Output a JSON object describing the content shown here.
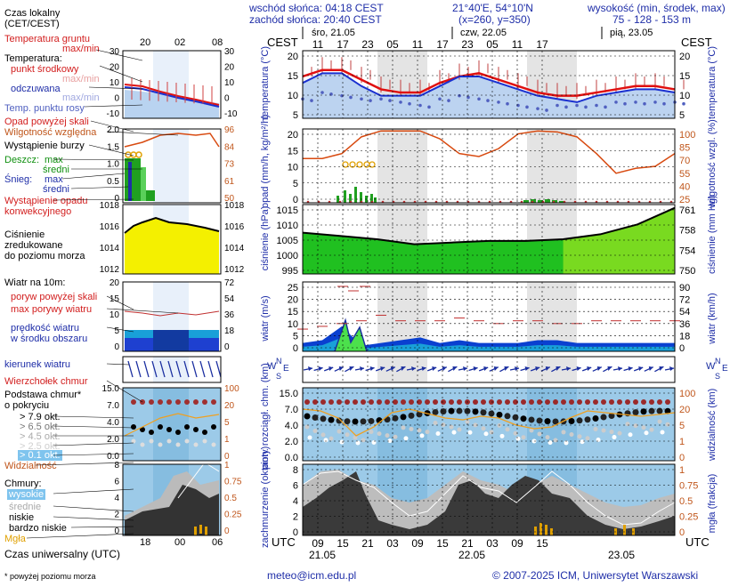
{
  "header": {
    "sunrise": "wschód słońca: 04:18 CEST",
    "sunset": "zachód słońca: 20:40 CEST",
    "coords": "21°40'E, 54°10'N",
    "grid": "(x=260, y=350)",
    "altitude_title": "wysokość (min, środek, max)",
    "altitude_values": "75 - 128 - 153 m"
  },
  "top_axis": {
    "tz_left": "CEST",
    "tz_right": "CEST",
    "days": [
      "śro, 21.05",
      "czw, 22.05",
      "pią, 23.05"
    ],
    "hours": [
      "11",
      "17",
      "23",
      "05",
      "11",
      "17",
      "23",
      "05",
      "11",
      "17"
    ]
  },
  "bottom_axis": {
    "tz_left": "UTC",
    "tz_right": "UTC",
    "hours": [
      "09",
      "15",
      "21",
      "03",
      "09",
      "15",
      "21",
      "03",
      "09",
      "15"
    ],
    "dates": [
      "21.05",
      "22.05",
      "23.05"
    ]
  },
  "legend": {
    "time_local": "Czas lokalny",
    "time_local2": "(CET/CEST)",
    "legend_hours_top": [
      "20",
      "02",
      "08"
    ],
    "legend_hours_bottom": [
      "18",
      "00",
      "06"
    ],
    "soil_temp": "Temperatura gruntu",
    "soil_maxmin": "max/min",
    "temp": "Temperatura:",
    "temp_mid": "punkt środkowy",
    "temp_maxmin": "max/min",
    "temp_felt": "odczuwana",
    "temp_felt_maxmin": "max/min",
    "dew": "Temp. punktu rosy",
    "precip_over": "Opad powyżej skali",
    "humidity": "Wilgotność względna",
    "storm": "Wystąpienie burzy",
    "rain": "Deszcz:",
    "rain_max": "max",
    "rain_mean": "średni",
    "snow": "Śnieg:",
    "snow_max": "max",
    "snow_mean": "średni",
    "conv": "Wystąpienie opadu",
    "conv2": "konwekcyjnego",
    "press1": "Ciśnienie",
    "press2": "zredukowane",
    "press3": "do poziomu morza",
    "wind_title": "Wiatr na 10m:",
    "gust_over": "poryw powyżej skali",
    "gust_max": "max porywy wiatru",
    "wind_speed1": "prędkość wiatru",
    "wind_speed2": "w środku obszaru",
    "wind_dir": "kierunek wiatru",
    "cb": "Wierzchołek chmur",
    "base1": "Podstawa chmur*",
    "base2": "o pokryciu",
    "okt": [
      "> 7.9 okt.",
      "> 6.5 okt.",
      "> 4.5 okt.",
      "> 2.5 okt.",
      "> 0.1 okt."
    ],
    "vis": "Widzialność",
    "clouds": "Chmury:",
    "c_high": "wysokie",
    "c_mid": "średnie",
    "c_low": "niskie",
    "c_vlow": "bardzo niskie",
    "fog": "Mgła",
    "utc": "Czas uniwersalny (UTC)",
    "footnote": "* powyżej poziomu morza"
  },
  "panel_labels": {
    "temp_l": "temperatura (°C)",
    "temp_r": "temperatura (°C)",
    "precip_l": "opad (mm/h, kg/m²/h)",
    "precip_r": "wilgotność wzgl. (%)",
    "press_l": "ciśnienie (hPa)",
    "press_r": "ciśnienie (mm Hg)",
    "wind_l": "wiatr (m/s)",
    "wind_r": "wiatr (km/h)",
    "cloud_l": "pion. rozciągł. chm. (km)",
    "cloud_r": "widzialność (km)",
    "cover_l": "zachmurzenie (oktanty)",
    "cover_r": "mgła (frakcja)"
  },
  "axes": {
    "temp_left": [
      "20",
      "15",
      "10",
      "5"
    ],
    "temp_right": [
      "20",
      "15",
      "10",
      "5"
    ],
    "precip_left": [
      "20",
      "15",
      "10",
      "5",
      "0"
    ],
    "precip_right": [
      "100",
      "85",
      "70",
      "55",
      "40",
      "25"
    ],
    "press_left": [
      "1015",
      "1010",
      "1005",
      "1000",
      "995"
    ],
    "press_right": [
      "761",
      "758",
      "754",
      "750"
    ],
    "wind_left": [
      "25",
      "20",
      "15",
      "10",
      "5",
      "0"
    ],
    "wind_right": [
      "90",
      "72",
      "54",
      "36",
      "18",
      "0"
    ],
    "cloud_left": [
      "15.0",
      "7.0",
      "4.0",
      "2.0",
      "0.0"
    ],
    "cloud_right": [
      "100",
      "20",
      "5",
      "1",
      "0"
    ],
    "cover_left": [
      "8",
      "6",
      "4",
      "2",
      "0"
    ],
    "cover_right": [
      "1",
      "0.75",
      "0.5",
      "0.25",
      "0"
    ],
    "leg_temp_l": [
      "30",
      "20",
      "10",
      "0",
      "-10"
    ],
    "leg_temp_r": [
      "30",
      "20",
      "10",
      "0",
      "-10"
    ],
    "leg_prec_l": [
      "2.0",
      "1.5",
      "1.0",
      "0.5",
      "0"
    ],
    "leg_prec_r": [
      "96",
      "84",
      "73",
      "61",
      "50"
    ],
    "leg_press_l": [
      "1018",
      "1016",
      "1014",
      "1012"
    ],
    "leg_press_r": [
      "1018",
      "1016",
      "1014",
      "1012"
    ],
    "leg_wind_l": [
      "20",
      "15",
      "10",
      "5",
      "0"
    ],
    "leg_wind_r": [
      "72",
      "54",
      "36",
      "18",
      "0"
    ],
    "leg_cloud_l": [
      "15.0",
      "7.0",
      "4.0",
      "2.0",
      "0.0"
    ],
    "leg_cloud_r": [
      "100",
      "20",
      "5",
      "1",
      "0"
    ],
    "leg_cover_l": [
      "8",
      "6",
      "4",
      "2",
      "0"
    ],
    "leg_cover_r": [
      "1",
      "0.75",
      "0.5",
      "0.25",
      "0"
    ]
  },
  "footer": {
    "email": "meteo@icm.edu.pl",
    "copyright": "© 2007-2025 ICM, Uniwersytet Warszawski"
  },
  "colors": {
    "temp": "#e01010",
    "felt": "#1a30d0",
    "dew": "#5060c0",
    "humidity": "#d84a10",
    "rain": "#20a020",
    "press": "#20c020",
    "press_top": "#c8ee20",
    "wind": "#0a40d0",
    "night": "#e4e4e4",
    "cloudbg": "#9ccae8"
  },
  "chart_data": [
    {
      "type": "line",
      "name": "temperature",
      "x_hours_cest": [
        11,
        14,
        17,
        20,
        23,
        2,
        5,
        8,
        11,
        14,
        17,
        20,
        23,
        2,
        5,
        8,
        11,
        14,
        17,
        20
      ],
      "series": [
        {
          "name": "temperatura",
          "values": [
            15,
            17,
            17,
            14,
            11,
            10,
            10,
            13,
            15,
            16,
            14,
            12,
            10,
            9,
            9,
            10,
            11,
            12,
            12,
            11
          ]
        },
        {
          "name": "odczuwana",
          "values": [
            13,
            16,
            16,
            12,
            9,
            9,
            9,
            12,
            15,
            15,
            13,
            11,
            9,
            8,
            7,
            9,
            10,
            11,
            11,
            10
          ]
        },
        {
          "name": "Temp. punktu rosy",
          "values": [
            8,
            10,
            9,
            8,
            8,
            7,
            6,
            8,
            9,
            8,
            7,
            6,
            5,
            6,
            6,
            6,
            7,
            7,
            7,
            7
          ]
        }
      ],
      "ylim": [
        2,
        23
      ]
    },
    {
      "type": "bar",
      "name": "precipitation",
      "series": [
        {
          "name": "wilgotność",
          "values": [
            70,
            70,
            75,
            92,
            98,
            98,
            98,
            90,
            75,
            72,
            80,
            95,
            98,
            97,
            92,
            75,
            55,
            60,
            62,
            75
          ]
        },
        {
          "name": "deszcz",
          "values": [
            0,
            3,
            5,
            0,
            0,
            0,
            0,
            0,
            0,
            0,
            1,
            0.5,
            0,
            0,
            0,
            0,
            0,
            0,
            0,
            0
          ]
        }
      ],
      "ylim": [
        0,
        20
      ]
    },
    {
      "type": "area",
      "name": "pressure",
      "x_hours_cest": [
        11,
        17,
        23,
        5,
        11,
        17,
        23,
        5,
        11,
        17,
        20
      ],
      "values": [
        1007.5,
        1006.5,
        1005.5,
        1004,
        1004.5,
        1005,
        1005,
        1005.5,
        1007,
        1010,
        1015
      ],
      "ylim": [
        995,
        1016
      ]
    },
    {
      "type": "area",
      "name": "wind",
      "series": [
        {
          "name": "prędkość",
          "values": [
            3,
            4,
            9,
            2,
            3,
            4,
            5,
            3,
            4,
            3,
            3,
            3,
            4,
            4,
            3,
            3,
            3,
            3,
            3,
            3
          ]
        },
        {
          "name": "porywy",
          "values": [
            8,
            9,
            10,
            11,
            13,
            11,
            11,
            11,
            12,
            11,
            10,
            11,
            11,
            10,
            10,
            11,
            11,
            11,
            11,
            11
          ]
        }
      ],
      "ylim": [
        0,
        25
      ]
    },
    {
      "type": "scatter",
      "name": "cloud base",
      "ylim": [
        0,
        15
      ]
    },
    {
      "type": "area",
      "name": "cloud cover",
      "ylim": [
        0,
        8
      ]
    }
  ]
}
